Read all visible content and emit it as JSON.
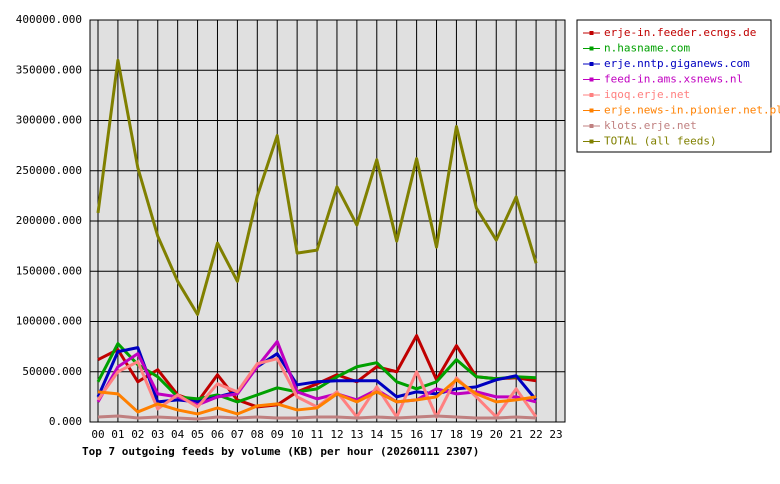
{
  "chart_data": {
    "type": "line",
    "title": "Top 7 outgoing feeds by volume (KB) per hour (20260111 2307)",
    "categories": [
      "00",
      "01",
      "02",
      "03",
      "04",
      "05",
      "06",
      "07",
      "08",
      "09",
      "10",
      "11",
      "12",
      "13",
      "14",
      "15",
      "16",
      "17",
      "18",
      "19",
      "20",
      "21",
      "22",
      "23"
    ],
    "ylim": [
      0,
      400000
    ],
    "yticks": [
      {
        "value": 0,
        "label": "0.000"
      },
      {
        "value": 50000,
        "label": "50000.000"
      },
      {
        "value": 100000,
        "label": "100000.000"
      },
      {
        "value": 150000,
        "label": "150000.000"
      },
      {
        "value": 200000,
        "label": "200000.000"
      },
      {
        "value": 250000,
        "label": "250000.000"
      },
      {
        "value": 300000,
        "label": "300000.000"
      },
      {
        "value": 350000,
        "label": "350000.000"
      },
      {
        "value": 400000,
        "label": "400000.000"
      }
    ],
    "grid": true,
    "series": [
      {
        "name": "erje-in.feeder.ecngs.de",
        "color": "#c00000",
        "values": [
          62000,
          72000,
          40000,
          52000,
          27000,
          20000,
          47000,
          22000,
          15000,
          17000,
          30000,
          38000,
          47000,
          40000,
          55000,
          50000,
          86000,
          42000,
          76000,
          45000,
          43000,
          44000,
          41000,
          null
        ]
      },
      {
        "name": "n.hasname.com",
        "color": "#00a000",
        "values": [
          40000,
          78000,
          57000,
          45000,
          25000,
          23000,
          27000,
          20000,
          27000,
          34000,
          30000,
          33000,
          45000,
          55000,
          59000,
          40000,
          33000,
          40000,
          62000,
          45000,
          43000,
          45000,
          44000,
          null
        ]
      },
      {
        "name": "erje.nntp.giganews.com",
        "color": "#0000c0",
        "values": [
          25000,
          70000,
          74000,
          20000,
          22000,
          20000,
          25000,
          30000,
          55000,
          68000,
          37000,
          40000,
          41000,
          41000,
          41000,
          25000,
          30000,
          28000,
          33000,
          35000,
          42000,
          46000,
          22000,
          null
        ]
      },
      {
        "name": "feed-in.ams.xsnews.nl",
        "color": "#c000c0",
        "values": [
          20000,
          55000,
          68000,
          28000,
          25000,
          17000,
          25000,
          28000,
          55000,
          80000,
          30000,
          23000,
          28000,
          22000,
          32000,
          20000,
          22000,
          33000,
          28000,
          30000,
          25000,
          25000,
          20000,
          null
        ]
      },
      {
        "name": "iqoq.erje.net",
        "color": "#ff8080",
        "values": [
          22000,
          50000,
          60000,
          13000,
          27000,
          15000,
          38000,
          30000,
          58000,
          63000,
          25000,
          15000,
          30000,
          5000,
          35000,
          5000,
          50000,
          5000,
          44000,
          25000,
          5000,
          33000,
          5000,
          null
        ]
      },
      {
        "name": "erje.news-in.pionier.net.pl",
        "color": "#ff8000",
        "values": [
          30000,
          28000,
          10000,
          18000,
          12000,
          8000,
          14000,
          8000,
          16000,
          18000,
          12000,
          14000,
          28000,
          20000,
          30000,
          20000,
          22000,
          25000,
          42000,
          28000,
          20000,
          22000,
          25000,
          null
        ]
      },
      {
        "name": "klots.erje.net",
        "color": "#c08080",
        "values": [
          5000,
          6000,
          4000,
          5000,
          4000,
          3000,
          5000,
          4000,
          5000,
          4000,
          4000,
          5000,
          5000,
          4000,
          5000,
          4000,
          5000,
          6000,
          5000,
          4000,
          4000,
          5000,
          4000,
          null
        ]
      },
      {
        "name": "TOTAL (all feeds)",
        "color": "#808000",
        "values": [
          208000,
          360000,
          253000,
          185000,
          140000,
          107000,
          178000,
          140000,
          225000,
          285000,
          168000,
          171000,
          234000,
          196000,
          261000,
          180000,
          262000,
          174000,
          294000,
          213000,
          181000,
          224000,
          158000,
          null
        ]
      }
    ]
  }
}
